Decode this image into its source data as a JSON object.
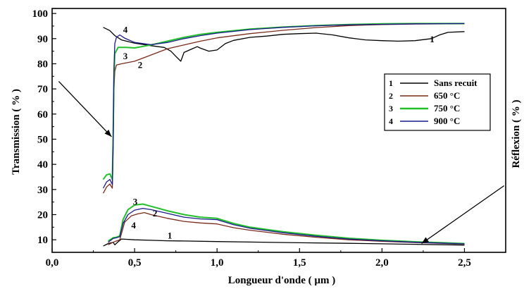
{
  "chart_data": {
    "type": "line",
    "title": "",
    "xlabel": "Longueur d'onde  ( µm )",
    "ylabel_left": "Transmission  ( % )",
    "ylabel_right": "Réflexion ( % )",
    "xlim": [
      0.0,
      2.75
    ],
    "ylim": [
      5,
      102
    ],
    "x_ticks": [
      0.0,
      0.5,
      1.0,
      1.5,
      2.0,
      2.5
    ],
    "x_tick_labels": [
      "0,0",
      "0,5",
      "1,0",
      "1,5",
      "2,0",
      "2,5"
    ],
    "y_ticks": [
      10,
      20,
      30,
      40,
      50,
      60,
      70,
      80,
      90,
      100
    ],
    "y_tick_labels": [
      "10",
      "20",
      "30",
      "40",
      "50",
      "60",
      "70",
      "80",
      "90",
      "100"
    ],
    "grid": false,
    "legend_position": "right",
    "series": [
      {
        "number": "1",
        "name": "Sans recuit",
        "color": "#000000",
        "transmission": [
          [
            0.31,
            94.5
          ],
          [
            0.35,
            93.2
          ],
          [
            0.38,
            91.2
          ],
          [
            0.42,
            89.5
          ],
          [
            0.5,
            88.2
          ],
          [
            0.6,
            87.2
          ],
          [
            0.68,
            86.5
          ],
          [
            0.72,
            85.0
          ],
          [
            0.75,
            83.0
          ],
          [
            0.78,
            81.0
          ],
          [
            0.8,
            84.5
          ],
          [
            0.85,
            86.0
          ],
          [
            0.88,
            86.8
          ],
          [
            0.9,
            86.2
          ],
          [
            0.95,
            85.0
          ],
          [
            1.0,
            85.5
          ],
          [
            1.05,
            88.0
          ],
          [
            1.1,
            89.3
          ],
          [
            1.2,
            90.5
          ],
          [
            1.3,
            91.0
          ],
          [
            1.4,
            91.7
          ],
          [
            1.5,
            92.0
          ],
          [
            1.6,
            92.2
          ],
          [
            1.7,
            91.5
          ],
          [
            1.8,
            90.3
          ],
          [
            1.9,
            89.5
          ],
          [
            2.0,
            89.2
          ],
          [
            2.1,
            89.0
          ],
          [
            2.2,
            89.2
          ],
          [
            2.3,
            90.0
          ],
          [
            2.35,
            91.5
          ],
          [
            2.4,
            92.5
          ],
          [
            2.5,
            92.8
          ]
        ],
        "reflection": [
          [
            0.31,
            7.5
          ],
          [
            0.34,
            8.5
          ],
          [
            0.37,
            9.0
          ],
          [
            0.38,
            8.0
          ],
          [
            0.4,
            9.2
          ],
          [
            0.42,
            10.3
          ],
          [
            0.45,
            10.2
          ],
          [
            0.5,
            10.0
          ],
          [
            0.6,
            9.8
          ],
          [
            0.7,
            9.6
          ],
          [
            0.8,
            9.5
          ],
          [
            1.0,
            9.3
          ],
          [
            1.2,
            9.1
          ],
          [
            1.5,
            8.8
          ],
          [
            1.8,
            8.6
          ],
          [
            2.0,
            8.4
          ],
          [
            2.2,
            8.2
          ],
          [
            2.5,
            7.9
          ]
        ]
      },
      {
        "number": "2",
        "name": "650 °C",
        "color": "#7a2a1a",
        "transmission": [
          [
            0.31,
            28.5
          ],
          [
            0.33,
            31.0
          ],
          [
            0.35,
            32.2
          ],
          [
            0.365,
            30.5
          ],
          [
            0.37,
            45.0
          ],
          [
            0.375,
            70.0
          ],
          [
            0.38,
            77.0
          ],
          [
            0.39,
            79.5
          ],
          [
            0.42,
            80.0
          ],
          [
            0.5,
            81.0
          ],
          [
            0.6,
            83.5
          ],
          [
            0.7,
            86.0
          ],
          [
            0.8,
            87.5
          ],
          [
            0.9,
            89.0
          ],
          [
            1.0,
            90.3
          ],
          [
            1.2,
            92.0
          ],
          [
            1.4,
            93.3
          ],
          [
            1.6,
            94.4
          ],
          [
            1.8,
            95.2
          ],
          [
            2.0,
            95.6
          ],
          [
            2.2,
            95.8
          ],
          [
            2.5,
            95.9
          ]
        ],
        "reflection": [
          [
            0.34,
            8.0
          ],
          [
            0.37,
            9.0
          ],
          [
            0.39,
            9.5
          ],
          [
            0.41,
            10.0
          ],
          [
            0.44,
            17.0
          ],
          [
            0.48,
            19.5
          ],
          [
            0.52,
            20.3
          ],
          [
            0.56,
            20.8
          ],
          [
            0.6,
            20.0
          ],
          [
            0.7,
            18.5
          ],
          [
            0.8,
            17.3
          ],
          [
            0.9,
            16.7
          ],
          [
            1.0,
            16.3
          ],
          [
            1.1,
            14.8
          ],
          [
            1.2,
            13.8
          ],
          [
            1.4,
            12.2
          ],
          [
            1.6,
            11.0
          ],
          [
            1.8,
            10.0
          ],
          [
            2.0,
            9.4
          ],
          [
            2.2,
            8.9
          ],
          [
            2.5,
            8.3
          ]
        ]
      },
      {
        "number": "3",
        "name": "750 °C",
        "color": "#22c02a",
        "transmission": [
          [
            0.31,
            34.0
          ],
          [
            0.33,
            35.8
          ],
          [
            0.35,
            36.2
          ],
          [
            0.365,
            34.0
          ],
          [
            0.37,
            50.0
          ],
          [
            0.375,
            75.0
          ],
          [
            0.38,
            84.0
          ],
          [
            0.4,
            86.5
          ],
          [
            0.45,
            86.5
          ],
          [
            0.5,
            86.3
          ],
          [
            0.6,
            87.5
          ],
          [
            0.7,
            89.0
          ],
          [
            0.8,
            90.5
          ],
          [
            0.9,
            91.7
          ],
          [
            1.0,
            92.5
          ],
          [
            1.2,
            93.8
          ],
          [
            1.4,
            94.6
          ],
          [
            1.6,
            95.2
          ],
          [
            1.8,
            95.6
          ],
          [
            2.0,
            95.9
          ],
          [
            2.2,
            96.0
          ],
          [
            2.5,
            96.0
          ]
        ],
        "reflection": [
          [
            0.34,
            9.5
          ],
          [
            0.37,
            10.8
          ],
          [
            0.39,
            11.0
          ],
          [
            0.41,
            11.5
          ],
          [
            0.43,
            18.0
          ],
          [
            0.46,
            22.0
          ],
          [
            0.5,
            23.8
          ],
          [
            0.55,
            24.2
          ],
          [
            0.6,
            23.3
          ],
          [
            0.7,
            21.5
          ],
          [
            0.8,
            20.0
          ],
          [
            0.9,
            19.0
          ],
          [
            1.0,
            18.5
          ],
          [
            1.1,
            16.5
          ],
          [
            1.2,
            15.0
          ],
          [
            1.4,
            13.2
          ],
          [
            1.6,
            11.8
          ],
          [
            1.8,
            10.6
          ],
          [
            2.0,
            9.8
          ],
          [
            2.2,
            9.2
          ],
          [
            2.5,
            8.5
          ]
        ]
      },
      {
        "number": "4",
        "name": "900 °C",
        "color": "#1a1a8c",
        "transmission": [
          [
            0.31,
            30.5
          ],
          [
            0.33,
            33.0
          ],
          [
            0.35,
            34.0
          ],
          [
            0.365,
            32.0
          ],
          [
            0.37,
            48.0
          ],
          [
            0.375,
            78.0
          ],
          [
            0.38,
            88.0
          ],
          [
            0.39,
            90.5
          ],
          [
            0.41,
            91.5
          ],
          [
            0.44,
            90.2
          ],
          [
            0.5,
            88.5
          ],
          [
            0.6,
            87.6
          ],
          [
            0.7,
            88.5
          ],
          [
            0.8,
            90.0
          ],
          [
            0.9,
            91.2
          ],
          [
            1.0,
            92.2
          ],
          [
            1.2,
            93.6
          ],
          [
            1.4,
            94.5
          ],
          [
            1.6,
            95.1
          ],
          [
            1.8,
            95.5
          ],
          [
            2.0,
            95.7
          ],
          [
            2.2,
            95.9
          ],
          [
            2.5,
            96.0
          ]
        ],
        "reflection": [
          [
            0.34,
            9.0
          ],
          [
            0.37,
            10.5
          ],
          [
            0.39,
            10.8
          ],
          [
            0.41,
            11.2
          ],
          [
            0.43,
            16.5
          ],
          [
            0.46,
            20.0
          ],
          [
            0.5,
            21.8
          ],
          [
            0.55,
            22.5
          ],
          [
            0.6,
            22.0
          ],
          [
            0.7,
            20.5
          ],
          [
            0.8,
            19.0
          ],
          [
            0.9,
            18.3
          ],
          [
            1.0,
            18.0
          ],
          [
            1.1,
            16.0
          ],
          [
            1.2,
            14.6
          ],
          [
            1.4,
            12.8
          ],
          [
            1.6,
            11.4
          ],
          [
            1.8,
            10.3
          ],
          [
            2.0,
            9.6
          ],
          [
            2.2,
            9.0
          ],
          [
            2.5,
            8.4
          ]
        ]
      }
    ],
    "curve_labels": [
      {
        "text": "1",
        "x": 2.29,
        "y": 89.6
      },
      {
        "text": "2",
        "x": 0.52,
        "y": 79.5
      },
      {
        "text": "3",
        "x": 0.43,
        "y": 83.0
      },
      {
        "text": "4",
        "x": 0.43,
        "y": 93.5
      },
      {
        "text": "1",
        "x": 0.7,
        "y": 11.6
      },
      {
        "text": "2",
        "x": 0.61,
        "y": 20.4
      },
      {
        "text": "3",
        "x": 0.49,
        "y": 25.0
      },
      {
        "text": "4",
        "x": 0.48,
        "y": 15.6
      }
    ],
    "annotations": [
      {
        "type": "arrow",
        "from": [
          0.04,
          73.0
        ],
        "to": [
          0.36,
          51.0
        ]
      },
      {
        "type": "arrow",
        "from": [
          2.74,
          31.5
        ],
        "to": [
          2.24,
          8.5
        ]
      }
    ]
  }
}
